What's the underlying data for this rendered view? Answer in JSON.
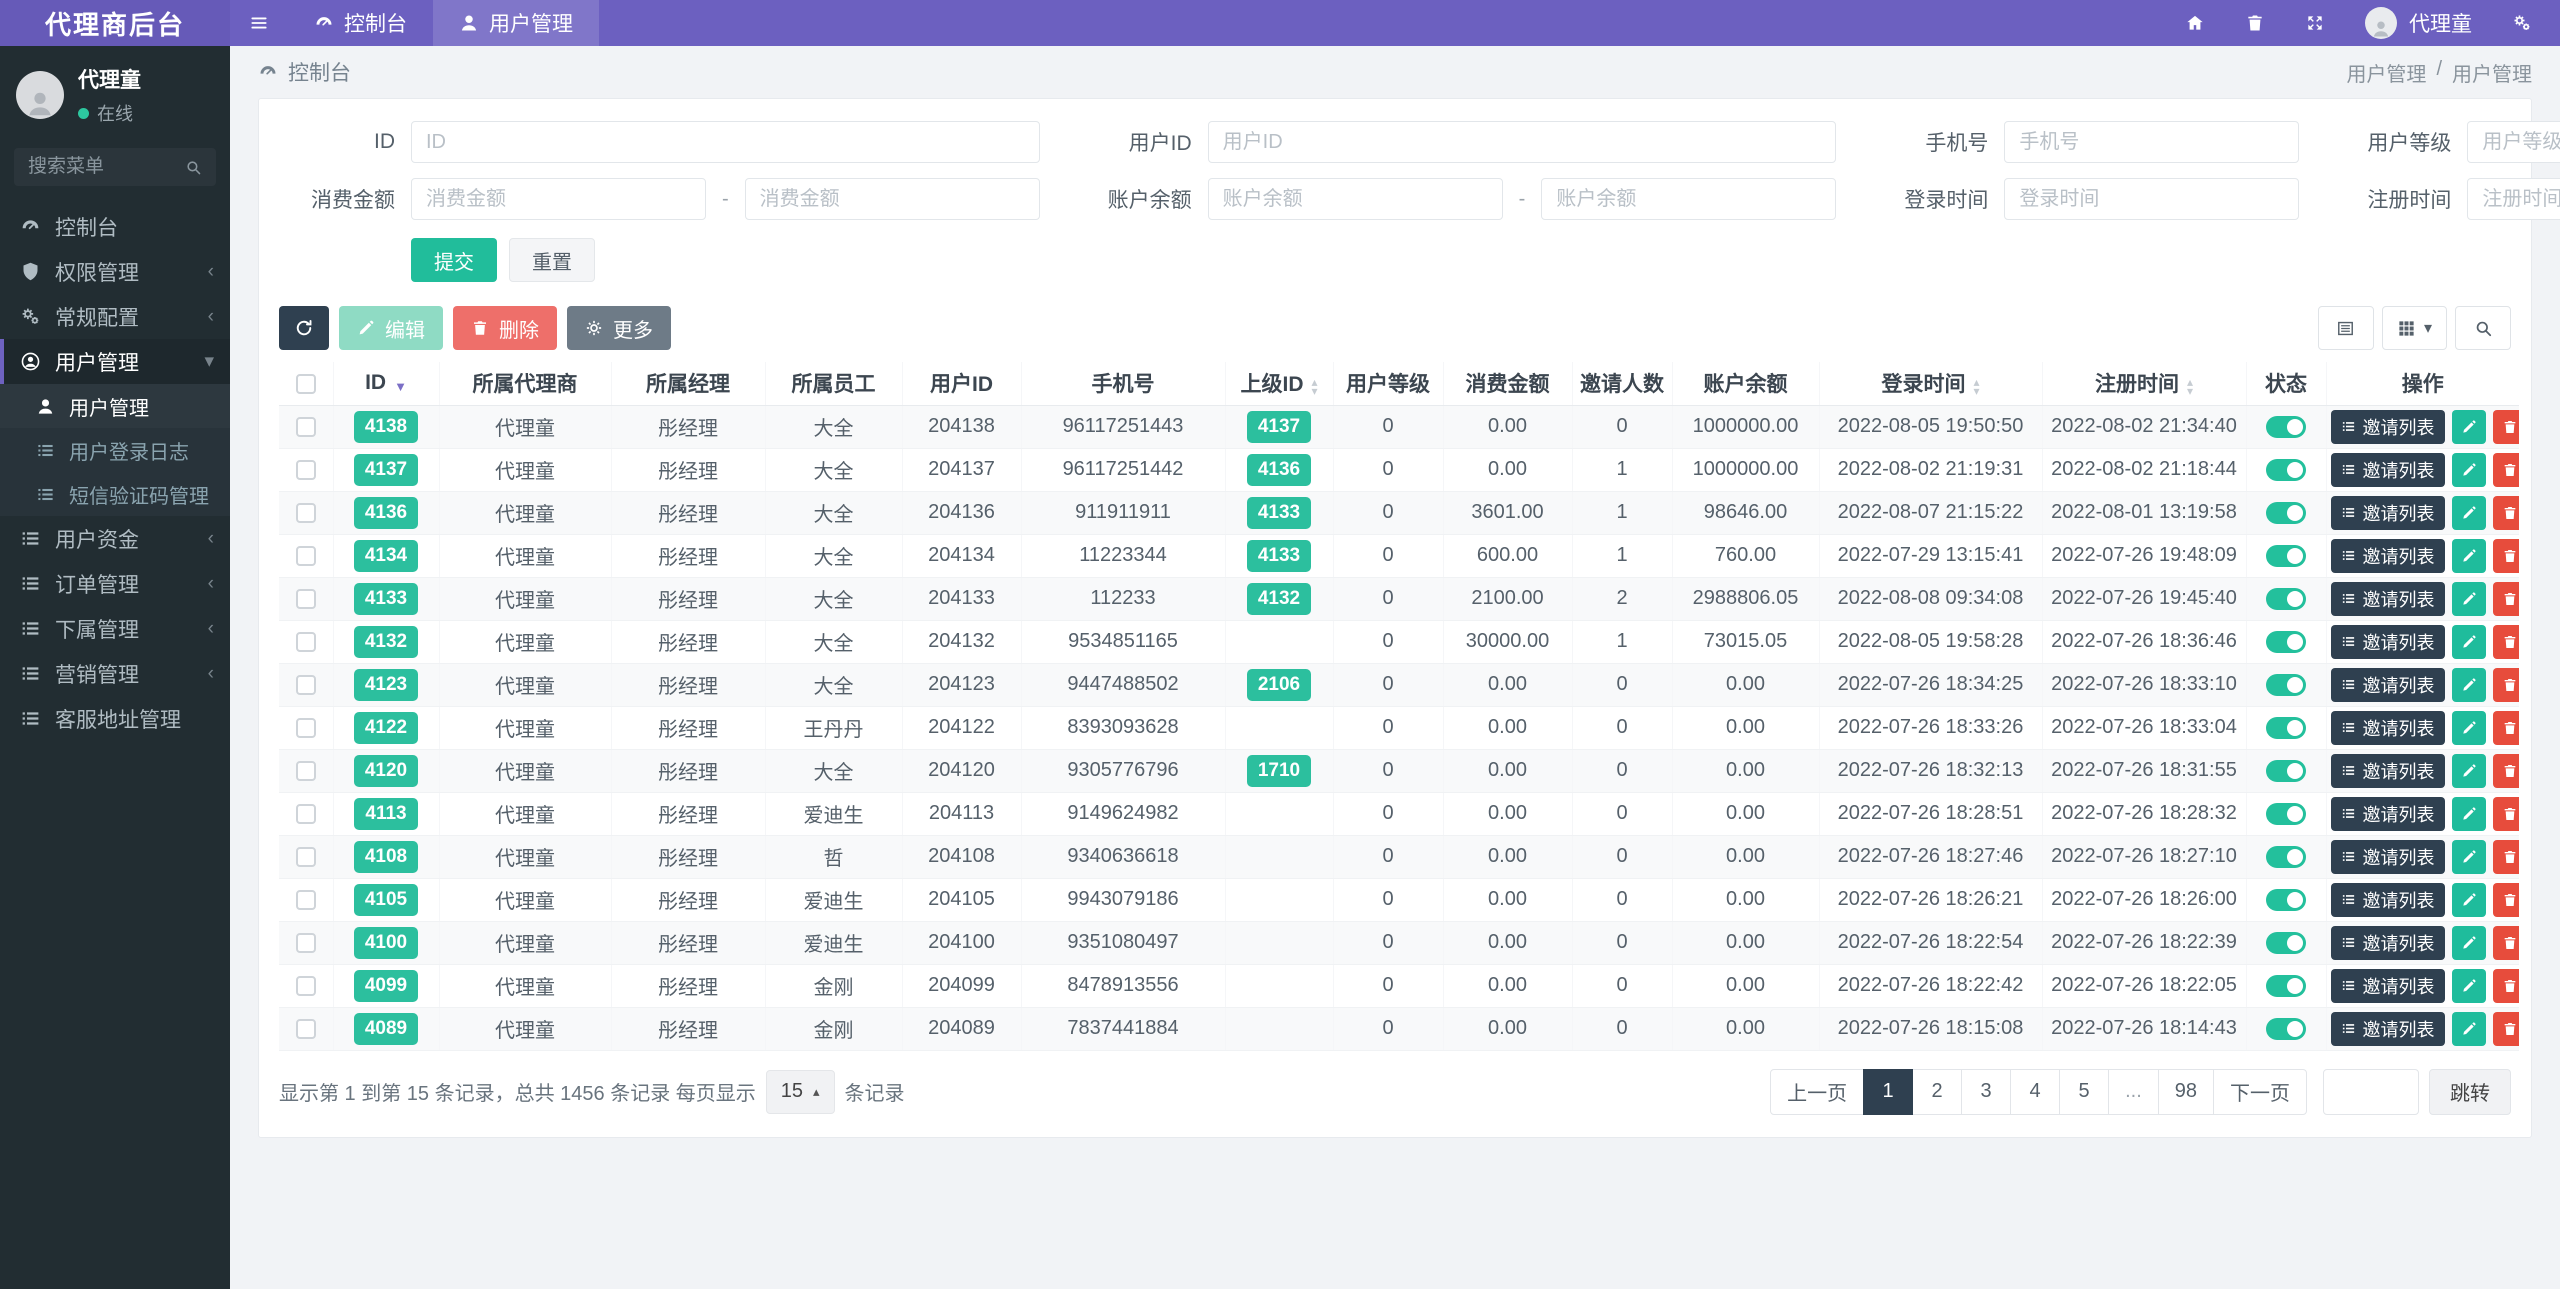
{
  "colors": {
    "primary_purple": "#6c60c0",
    "brand_purple": "#665ab8",
    "sidebar_dark": "#222d32",
    "success_green": "#21bd9b",
    "danger_red": "#e74c3c",
    "soft_red": "#ee6f6a",
    "dark_navy": "#2f4050",
    "toolbar_grey": "#6e7b87",
    "content_bg": "#f1f3f6"
  },
  "navbar": {
    "brand": "代理商后台",
    "tabs": [
      {
        "key": "console",
        "label": "控制台",
        "icon": "gauge",
        "active": false
      },
      {
        "key": "user-management",
        "label": "用户管理",
        "icon": "user",
        "active": true
      }
    ],
    "user": "代理童"
  },
  "sidebar": {
    "user_name": "代理童",
    "user_status": "在线",
    "search_placeholder": "搜索菜单",
    "items": [
      {
        "key": "console",
        "label": "控制台",
        "icon": "gauge"
      },
      {
        "key": "permission-management",
        "label": "权限管理",
        "icon": "shield",
        "chevron": true
      },
      {
        "key": "general-config",
        "label": "常规配置",
        "icon": "gears",
        "chevron": true
      },
      {
        "key": "user-management",
        "label": "用户管理",
        "icon": "user-circle",
        "active": true,
        "expanded": true,
        "chevron": true,
        "children": [
          {
            "key": "user-management-list",
            "label": "用户管理",
            "icon": "user",
            "active": true
          },
          {
            "key": "user-login-log",
            "label": "用户登录日志",
            "icon": "list"
          },
          {
            "key": "sms-code-management",
            "label": "短信验证码管理",
            "icon": "list"
          }
        ]
      },
      {
        "key": "user-funds",
        "label": "用户资金",
        "icon": "list",
        "chevron": true
      },
      {
        "key": "order-management",
        "label": "订单管理",
        "icon": "list",
        "chevron": true
      },
      {
        "key": "subordinate-management",
        "label": "下属管理",
        "icon": "list",
        "chevron": true
      },
      {
        "key": "marketing-management",
        "label": "营销管理",
        "icon": "list",
        "chevron": true
      },
      {
        "key": "service-address-management",
        "label": "客服地址管理",
        "icon": "list"
      }
    ]
  },
  "breadcrumb": {
    "left": "控制台",
    "right_parent": "用户管理",
    "separator": "/",
    "right_current": "用户管理"
  },
  "filter_form": {
    "fields": [
      {
        "key": "id",
        "label": "ID",
        "placeholder": "ID",
        "type": "single"
      },
      {
        "key": "user-id",
        "label": "用户ID",
        "placeholder": "用户ID",
        "type": "single"
      },
      {
        "key": "phone",
        "label": "手机号",
        "placeholder": "手机号",
        "type": "single"
      },
      {
        "key": "user-level",
        "label": "用户等级",
        "placeholder": "用户等级",
        "type": "single"
      },
      {
        "key": "consume-amount",
        "label": "消费金额",
        "placeholder": "消费金额",
        "type": "range"
      },
      {
        "key": "account-balance",
        "label": "账户余额",
        "placeholder": "账户余额",
        "type": "range"
      },
      {
        "key": "login-time",
        "label": "登录时间",
        "placeholder": "登录时间",
        "type": "single"
      },
      {
        "key": "register-time",
        "label": "注册时间",
        "placeholder": "注册时间",
        "type": "single"
      }
    ],
    "submit_label": "提交",
    "reset_label": "重置"
  },
  "toolbar": {
    "edit_label": "编辑",
    "delete_label": "删除",
    "more_label": "更多"
  },
  "table": {
    "invite_label": "邀请列表",
    "columns": [
      {
        "key": "select",
        "label": "",
        "type": "checkbox"
      },
      {
        "key": "id",
        "label": "ID",
        "sort": "desc"
      },
      {
        "key": "agent",
        "label": "所属代理商"
      },
      {
        "key": "manager",
        "label": "所属经理"
      },
      {
        "key": "staff",
        "label": "所属员工"
      },
      {
        "key": "user-id",
        "label": "用户ID"
      },
      {
        "key": "phone",
        "label": "手机号"
      },
      {
        "key": "parent-id",
        "label": "上级ID",
        "sort": "both"
      },
      {
        "key": "user-level",
        "label": "用户等级"
      },
      {
        "key": "consume",
        "label": "消费金额"
      },
      {
        "key": "invites",
        "label": "邀请人数"
      },
      {
        "key": "balance",
        "label": "账户余额"
      },
      {
        "key": "login-time",
        "label": "登录时间",
        "sort": "both"
      },
      {
        "key": "register-time",
        "label": "注册时间",
        "sort": "both"
      },
      {
        "key": "status",
        "label": "状态"
      },
      {
        "key": "actions",
        "label": "操作"
      }
    ],
    "rows": [
      {
        "id": "4138",
        "agent": "代理童",
        "manager": "彤经理",
        "staff": "大全",
        "user_id": "204138",
        "phone": "96117251443",
        "parent_id": "4137",
        "level": "0",
        "consume": "0.00",
        "invites": "0",
        "balance": "1000000.00",
        "login_time": "2022-08-05 19:50:50",
        "register_time": "2022-08-02 21:34:40",
        "status_on": true
      },
      {
        "id": "4137",
        "agent": "代理童",
        "manager": "彤经理",
        "staff": "大全",
        "user_id": "204137",
        "phone": "96117251442",
        "parent_id": "4136",
        "level": "0",
        "consume": "0.00",
        "invites": "1",
        "balance": "1000000.00",
        "login_time": "2022-08-02 21:19:31",
        "register_time": "2022-08-02 21:18:44",
        "status_on": true
      },
      {
        "id": "4136",
        "agent": "代理童",
        "manager": "彤经理",
        "staff": "大全",
        "user_id": "204136",
        "phone": "911911911",
        "parent_id": "4133",
        "level": "0",
        "consume": "3601.00",
        "invites": "1",
        "balance": "98646.00",
        "login_time": "2022-08-07 21:15:22",
        "register_time": "2022-08-01 13:19:58",
        "status_on": true
      },
      {
        "id": "4134",
        "agent": "代理童",
        "manager": "彤经理",
        "staff": "大全",
        "user_id": "204134",
        "phone": "11223344",
        "parent_id": "4133",
        "level": "0",
        "consume": "600.00",
        "invites": "1",
        "balance": "760.00",
        "login_time": "2022-07-29 13:15:41",
        "register_time": "2022-07-26 19:48:09",
        "status_on": true
      },
      {
        "id": "4133",
        "agent": "代理童",
        "manager": "彤经理",
        "staff": "大全",
        "user_id": "204133",
        "phone": "112233",
        "parent_id": "4132",
        "level": "0",
        "consume": "2100.00",
        "invites": "2",
        "balance": "2988806.05",
        "login_time": "2022-08-08 09:34:08",
        "register_time": "2022-07-26 19:45:40",
        "status_on": true
      },
      {
        "id": "4132",
        "agent": "代理童",
        "manager": "彤经理",
        "staff": "大全",
        "user_id": "204132",
        "phone": "9534851165",
        "parent_id": "",
        "level": "0",
        "consume": "30000.00",
        "invites": "1",
        "balance": "73015.05",
        "login_time": "2022-08-05 19:58:28",
        "register_time": "2022-07-26 18:36:46",
        "status_on": true
      },
      {
        "id": "4123",
        "agent": "代理童",
        "manager": "彤经理",
        "staff": "大全",
        "user_id": "204123",
        "phone": "9447488502",
        "parent_id": "2106",
        "level": "0",
        "consume": "0.00",
        "invites": "0",
        "balance": "0.00",
        "login_time": "2022-07-26 18:34:25",
        "register_time": "2022-07-26 18:33:10",
        "status_on": true
      },
      {
        "id": "4122",
        "agent": "代理童",
        "manager": "彤经理",
        "staff": "王丹丹",
        "user_id": "204122",
        "phone": "8393093628",
        "parent_id": "",
        "level": "0",
        "consume": "0.00",
        "invites": "0",
        "balance": "0.00",
        "login_time": "2022-07-26 18:33:26",
        "register_time": "2022-07-26 18:33:04",
        "status_on": true
      },
      {
        "id": "4120",
        "agent": "代理童",
        "manager": "彤经理",
        "staff": "大全",
        "user_id": "204120",
        "phone": "9305776796",
        "parent_id": "1710",
        "level": "0",
        "consume": "0.00",
        "invites": "0",
        "balance": "0.00",
        "login_time": "2022-07-26 18:32:13",
        "register_time": "2022-07-26 18:31:55",
        "status_on": true
      },
      {
        "id": "4113",
        "agent": "代理童",
        "manager": "彤经理",
        "staff": "爱迪生",
        "user_id": "204113",
        "phone": "9149624982",
        "parent_id": "",
        "level": "0",
        "consume": "0.00",
        "invites": "0",
        "balance": "0.00",
        "login_time": "2022-07-26 18:28:51",
        "register_time": "2022-07-26 18:28:32",
        "status_on": true
      },
      {
        "id": "4108",
        "agent": "代理童",
        "manager": "彤经理",
        "staff": "哲",
        "user_id": "204108",
        "phone": "9340636618",
        "parent_id": "",
        "level": "0",
        "consume": "0.00",
        "invites": "0",
        "balance": "0.00",
        "login_time": "2022-07-26 18:27:46",
        "register_time": "2022-07-26 18:27:10",
        "status_on": true
      },
      {
        "id": "4105",
        "agent": "代理童",
        "manager": "彤经理",
        "staff": "爱迪生",
        "user_id": "204105",
        "phone": "9943079186",
        "parent_id": "",
        "level": "0",
        "consume": "0.00",
        "invites": "0",
        "balance": "0.00",
        "login_time": "2022-07-26 18:26:21",
        "register_time": "2022-07-26 18:26:00",
        "status_on": true
      },
      {
        "id": "4100",
        "agent": "代理童",
        "manager": "彤经理",
        "staff": "爱迪生",
        "user_id": "204100",
        "phone": "9351080497",
        "parent_id": "",
        "level": "0",
        "consume": "0.00",
        "invites": "0",
        "balance": "0.00",
        "login_time": "2022-07-26 18:22:54",
        "register_time": "2022-07-26 18:22:39",
        "status_on": true
      },
      {
        "id": "4099",
        "agent": "代理童",
        "manager": "彤经理",
        "staff": "金刚",
        "user_id": "204099",
        "phone": "8478913556",
        "parent_id": "",
        "level": "0",
        "consume": "0.00",
        "invites": "0",
        "balance": "0.00",
        "login_time": "2022-07-26 18:22:42",
        "register_time": "2022-07-26 18:22:05",
        "status_on": true
      },
      {
        "id": "4089",
        "agent": "代理童",
        "manager": "彤经理",
        "staff": "金刚",
        "user_id": "204089",
        "phone": "7837441884",
        "parent_id": "",
        "level": "0",
        "consume": "0.00",
        "invites": "0",
        "balance": "0.00",
        "login_time": "2022-07-26 18:15:08",
        "register_time": "2022-07-26 18:14:43",
        "status_on": true
      }
    ]
  },
  "pagination": {
    "info_prefix": "显示第 1 到第 15 条记录，总共 1456 条记录 每页显示",
    "page_size": "15",
    "info_suffix": "条记录",
    "prev_label": "上一页",
    "next_label": "下一页",
    "pages": [
      "1",
      "2",
      "3",
      "4",
      "5",
      "...",
      "98"
    ],
    "active_page": "1",
    "jump_label": "跳转"
  }
}
